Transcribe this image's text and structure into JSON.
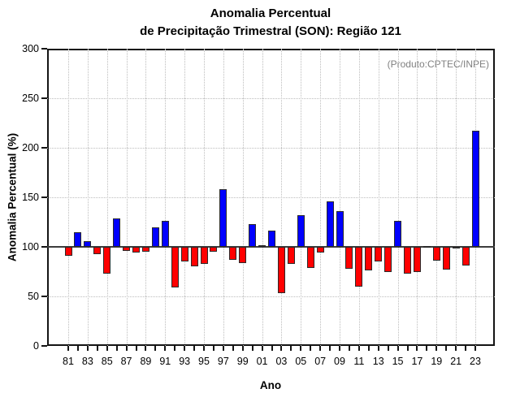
{
  "title": {
    "line1": "Anomalia Percentual",
    "line2": "de Precipitação Trimestral (SON): Região 121"
  },
  "annotation": "(Produto:CPTEC/INPE)",
  "axes": {
    "xlabel": "Ano",
    "ylabel": "Anomalia Percentual (%)"
  },
  "colors": {
    "bar_above": "#0000ff",
    "bar_below": "#ff0000",
    "baseline_line": "#3d3d3d",
    "grid": "#bdbdbd",
    "frame": "#141414",
    "annotation_text": "#808080"
  },
  "chart_data": {
    "type": "bar",
    "title": "Anomalia Percentual de Precipitação Trimestral (SON): Região 121",
    "xlabel": "Ano",
    "ylabel": "Anomalia Percentual (%)",
    "ylim": [
      0,
      300
    ],
    "yticks": [
      0,
      50,
      100,
      150,
      200,
      250,
      300
    ],
    "baseline": 100,
    "grid": "dotted",
    "legend": "none",
    "xtick_label_step": 2,
    "categories": [
      "81",
      "82",
      "83",
      "84",
      "85",
      "86",
      "87",
      "88",
      "89",
      "90",
      "91",
      "92",
      "93",
      "94",
      "95",
      "96",
      "97",
      "98",
      "99",
      "00",
      "01",
      "02",
      "03",
      "04",
      "05",
      "06",
      "07",
      "08",
      "09",
      "10",
      "11",
      "12",
      "13",
      "14",
      "15",
      "16",
      "17",
      "18",
      "19",
      "20",
      "21",
      "22",
      "23"
    ],
    "values": [
      91,
      115,
      106,
      93,
      73,
      129,
      96,
      94,
      95,
      120,
      126,
      59,
      85,
      80,
      83,
      95,
      158,
      87,
      84,
      123,
      102,
      116,
      53,
      83,
      132,
      79,
      94,
      146,
      136,
      78,
      60,
      76,
      85,
      75,
      126,
      73,
      75,
      101,
      86,
      77,
      98,
      81,
      217
    ],
    "bar_color_above": "#0000ff",
    "bar_color_below": "#ff0000"
  }
}
